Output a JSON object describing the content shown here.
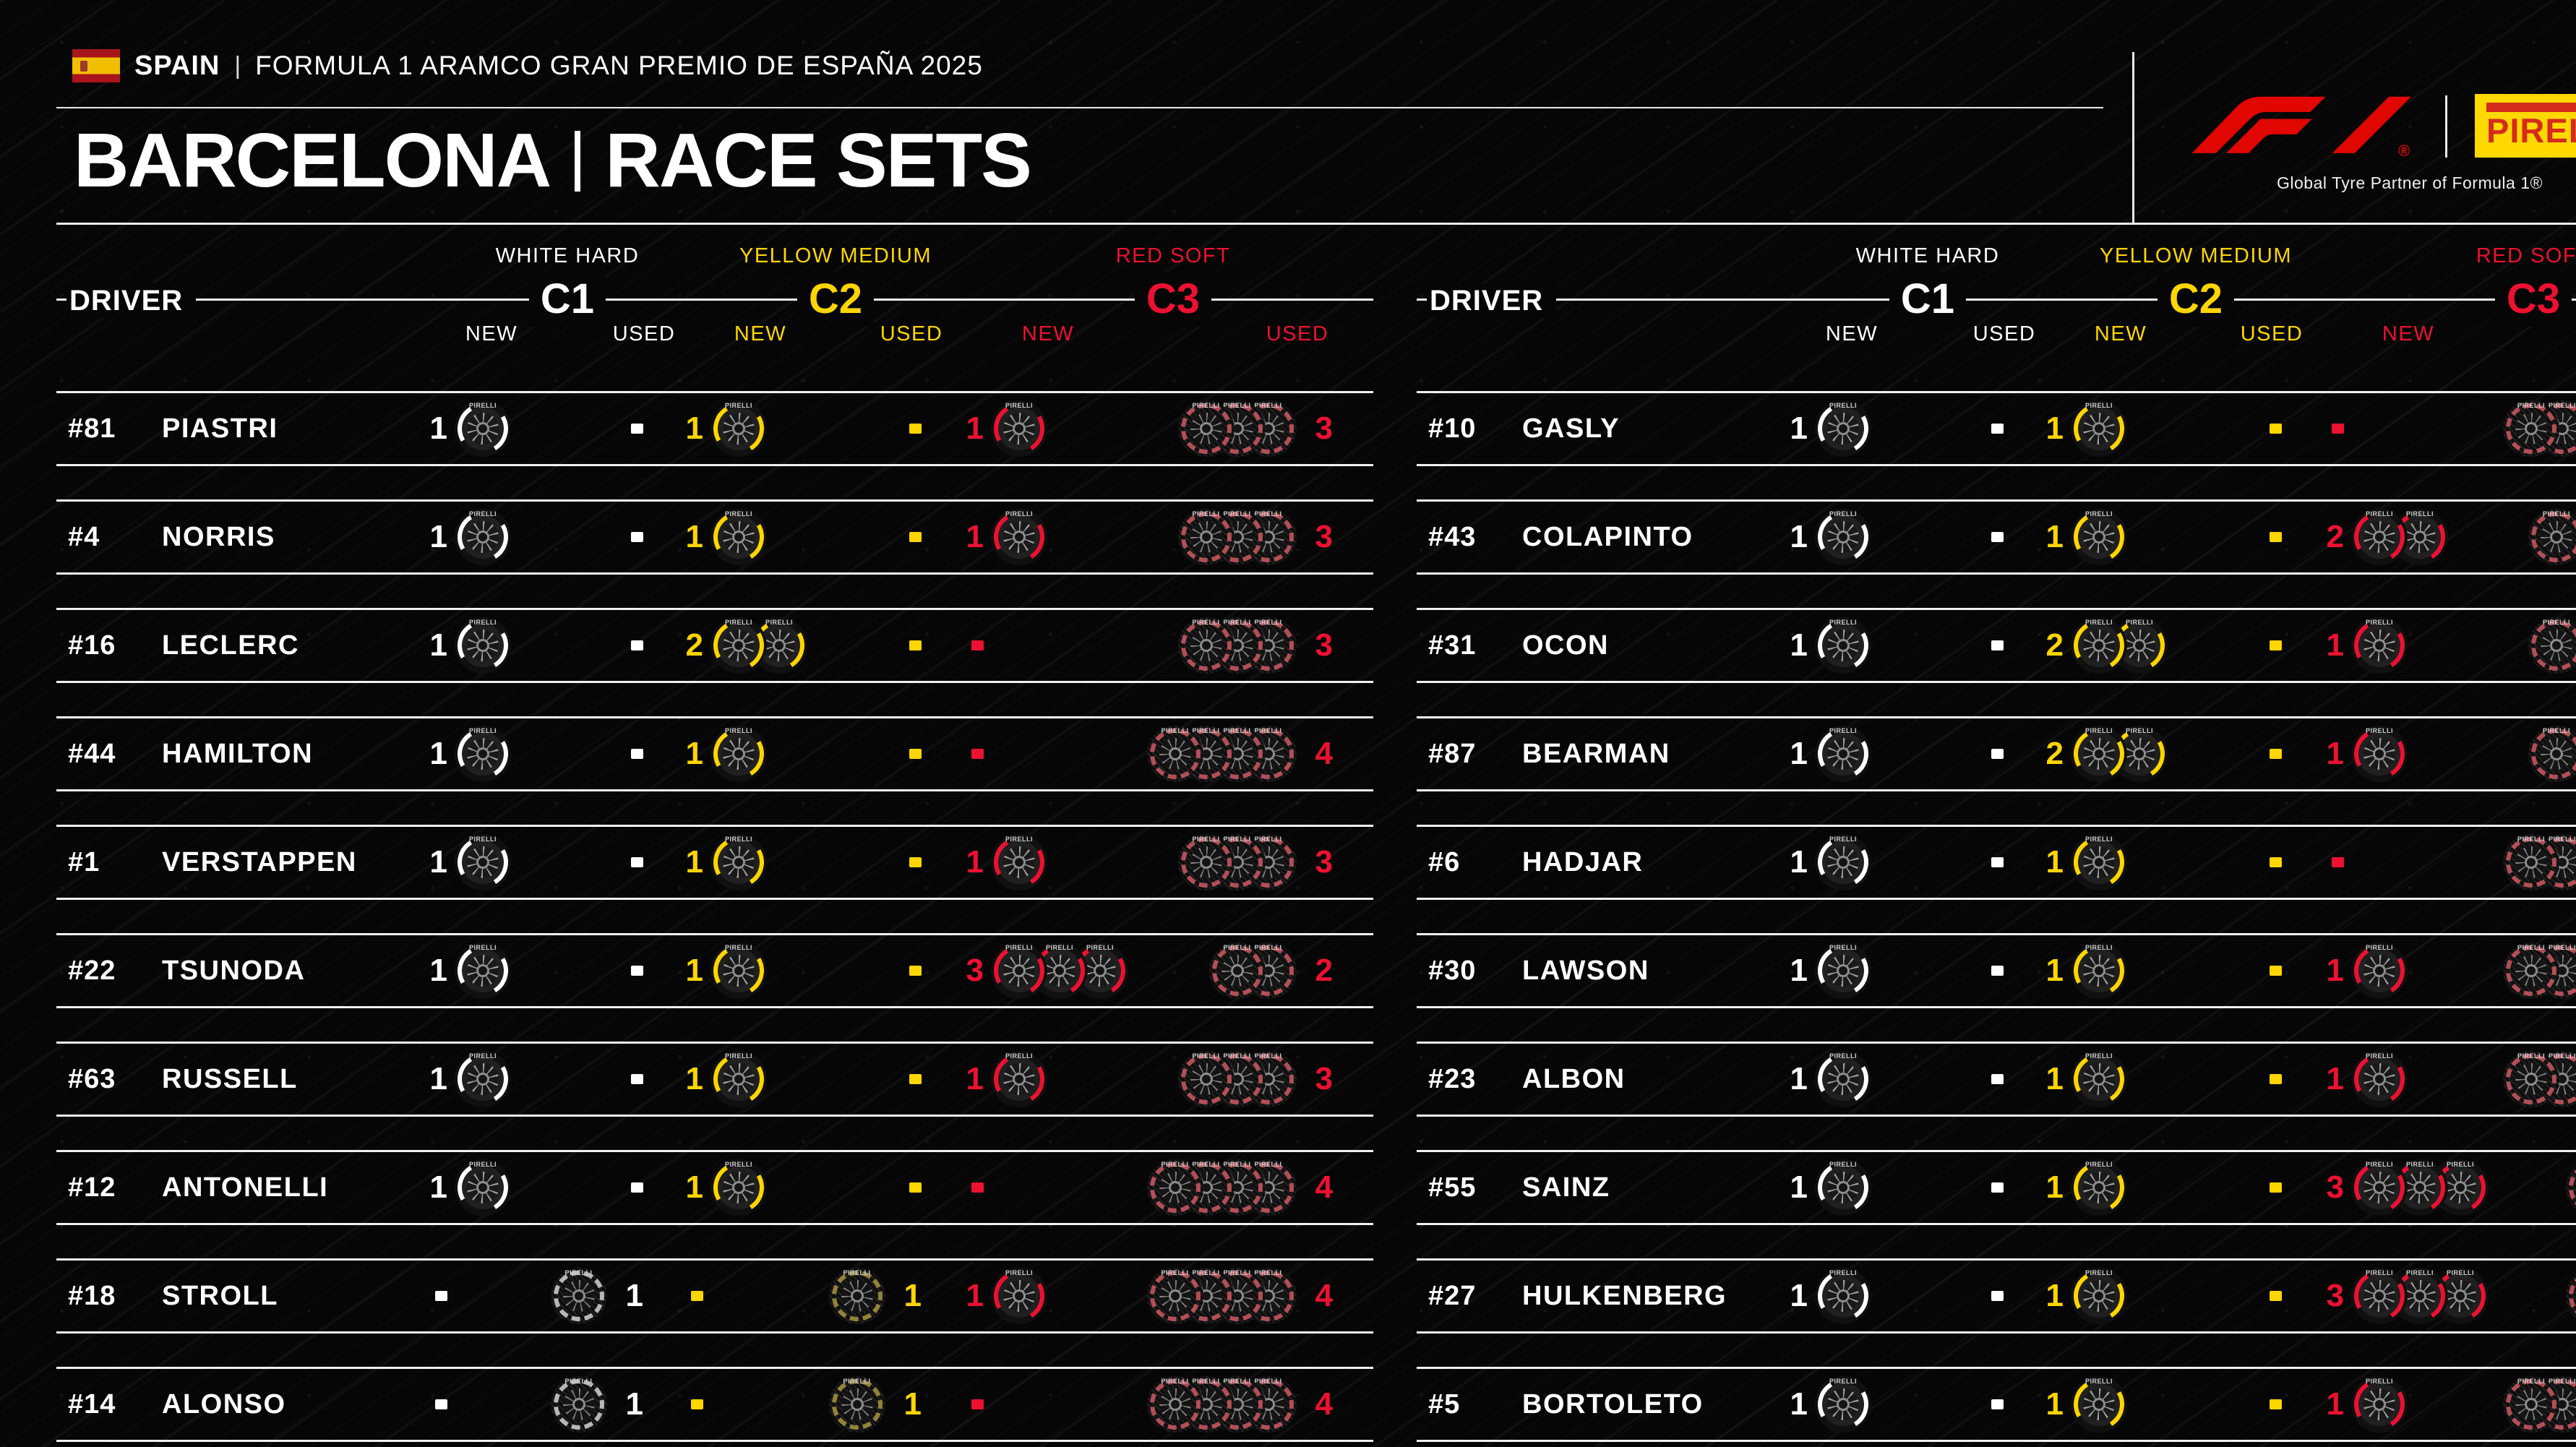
{
  "header": {
    "flag_name": "spain-flag",
    "country": "SPAIN",
    "separator": "|",
    "event_title": "FORMULA 1 ARAMCO GRAN PREMIO DE ESPAÑA 2025",
    "title_city": "BARCELONA",
    "title_type": "RACE SETS",
    "f1_logo": "F1",
    "f1_reg": "®",
    "pirelli_logo": "PIRELLI",
    "partner_text": "Global Tyre Partner of Formula 1®"
  },
  "labels": {
    "driver": "DRIVER",
    "new": "NEW",
    "used": "USED"
  },
  "compounds": [
    {
      "id": "c1",
      "label": "C1",
      "name": "WHITE HARD",
      "color": "#FFFFFF",
      "used_color": "#C9C9C9"
    },
    {
      "id": "c2",
      "label": "C2",
      "name": "YELLOW MEDIUM",
      "color": "#FFD502",
      "used_color": "#A08F3E"
    },
    {
      "id": "c3",
      "label": "C3",
      "name": "RED SOFT",
      "color": "#ED1131",
      "used_color": "#C4565F"
    }
  ],
  "colors": {
    "f1_red": "#E10600",
    "pirelli_yellow": "#FFD800",
    "pirelli_red": "#D52B1E",
    "line_white": "#F2F2F2",
    "background": "#060606"
  },
  "tables": {
    "left": {
      "rows": [
        {
          "num": "#81",
          "name": "PIASTRI",
          "c1n": 1,
          "c1u": null,
          "c2n": 1,
          "c2u": null,
          "c3n": 1,
          "c3u": 3
        },
        {
          "num": "#4",
          "name": "NORRIS",
          "c1n": 1,
          "c1u": null,
          "c2n": 1,
          "c2u": null,
          "c3n": 1,
          "c3u": 3
        },
        {
          "num": "#16",
          "name": "LECLERC",
          "c1n": 1,
          "c1u": null,
          "c2n": 2,
          "c2u": null,
          "c3n": null,
          "c3u": 3
        },
        {
          "num": "#44",
          "name": "HAMILTON",
          "c1n": 1,
          "c1u": null,
          "c2n": 1,
          "c2u": null,
          "c3n": null,
          "c3u": 4
        },
        {
          "num": "#1",
          "name": "VERSTAPPEN",
          "c1n": 1,
          "c1u": null,
          "c2n": 1,
          "c2u": null,
          "c3n": 1,
          "c3u": 3
        },
        {
          "num": "#22",
          "name": "TSUNODA",
          "c1n": 1,
          "c1u": null,
          "c2n": 1,
          "c2u": null,
          "c3n": 3,
          "c3u": 2
        },
        {
          "num": "#63",
          "name": "RUSSELL",
          "c1n": 1,
          "c1u": null,
          "c2n": 1,
          "c2u": null,
          "c3n": 1,
          "c3u": 3
        },
        {
          "num": "#12",
          "name": "ANTONELLI",
          "c1n": 1,
          "c1u": null,
          "c2n": 1,
          "c2u": null,
          "c3n": null,
          "c3u": 4
        },
        {
          "num": "#18",
          "name": "STROLL",
          "c1n": null,
          "c1u": 1,
          "c2n": null,
          "c2u": 1,
          "c3n": 1,
          "c3u": 4
        },
        {
          "num": "#14",
          "name": "ALONSO",
          "c1n": null,
          "c1u": 1,
          "c2n": null,
          "c2u": 1,
          "c3n": null,
          "c3u": 4
        }
      ]
    },
    "right": {
      "rows": [
        {
          "num": "#10",
          "name": "GASLY",
          "c1n": 1,
          "c1u": null,
          "c2n": 1,
          "c2u": null,
          "c3n": null,
          "c3u": "partial-2"
        },
        {
          "num": "#43",
          "name": "COLAPINTO",
          "c1n": 1,
          "c1u": null,
          "c2n": 1,
          "c2u": null,
          "c3n": 2,
          "c3u": "partial-1"
        },
        {
          "num": "#31",
          "name": "OCON",
          "c1n": 1,
          "c1u": null,
          "c2n": 2,
          "c2u": null,
          "c3n": 1,
          "c3u": "partial-1"
        },
        {
          "num": "#87",
          "name": "BEARMAN",
          "c1n": 1,
          "c1u": null,
          "c2n": 2,
          "c2u": null,
          "c3n": 1,
          "c3u": "partial-1"
        },
        {
          "num": "#6",
          "name": "HADJAR",
          "c1n": 1,
          "c1u": null,
          "c2n": 1,
          "c2u": null,
          "c3n": null,
          "c3u": "partial-2"
        },
        {
          "num": "#30",
          "name": "LAWSON",
          "c1n": 1,
          "c1u": null,
          "c2n": 1,
          "c2u": null,
          "c3n": 1,
          "c3u": "partial-2"
        },
        {
          "num": "#23",
          "name": "ALBON",
          "c1n": 1,
          "c1u": null,
          "c2n": 1,
          "c2u": null,
          "c3n": 1,
          "c3u": "partial-2"
        },
        {
          "num": "#55",
          "name": "SAINZ",
          "c1n": 1,
          "c1u": null,
          "c2n": 1,
          "c2u": null,
          "c3n": 3,
          "c3u": "sliver"
        },
        {
          "num": "#27",
          "name": "HULKENBERG",
          "c1n": 1,
          "c1u": null,
          "c2n": 1,
          "c2u": null,
          "c3n": 3,
          "c3u": "sliver"
        },
        {
          "num": "#5",
          "name": "BORTOLETO",
          "c1n": 1,
          "c1u": null,
          "c2n": 1,
          "c2u": null,
          "c3n": 1,
          "c3u": "partial-2"
        }
      ]
    }
  }
}
